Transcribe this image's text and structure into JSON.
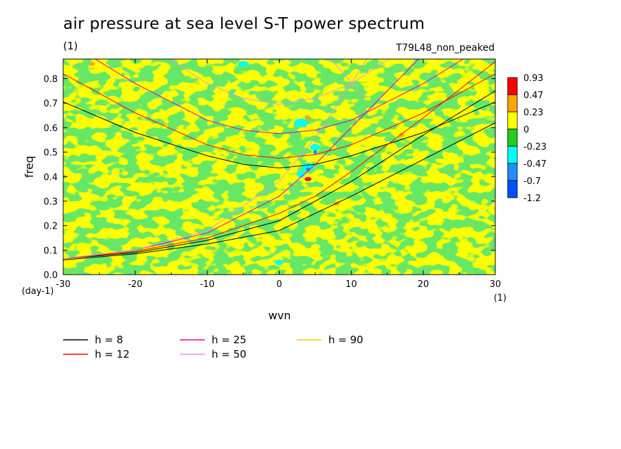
{
  "chart_data": {
    "type": "heatmap",
    "title": "air pressure at sea level S-T power spectrum",
    "units_label": "(1)",
    "run_label": "T79L48_non_peaked",
    "xlabel": "wvn",
    "ylabel": "freq",
    "x_unit": "(1)",
    "y_unit": "(day-1)",
    "xlim": [
      -30,
      30
    ],
    "ylim": [
      0,
      0.88
    ],
    "x_ticks": [
      "-30",
      "-20",
      "-10",
      "0",
      "10",
      "20",
      "30"
    ],
    "y_ticks": [
      "0.0",
      "0.1",
      "0.2",
      "0.3",
      "0.4",
      "0.5",
      "0.6",
      "0.7",
      "0.8"
    ],
    "colorbar": {
      "levels": [
        "0.93",
        "0.47",
        "0.23",
        "0",
        "-0.23",
        "-0.47",
        "-0.7",
        "-1.2"
      ],
      "colors": [
        "#ff0000",
        "#ffa500",
        "#ffff00",
        "#22cc22",
        "#00ffff",
        "#1e90ff",
        "#0050ff"
      ]
    },
    "field_colors": {
      "background": "#ffff00",
      "green": "#22cc22",
      "cyan": "#00ffff",
      "blue": "#1e90ff",
      "orange": "#ffa500",
      "red": "#ff0000"
    },
    "series": [
      {
        "name": "h =  8",
        "color": "#000000"
      },
      {
        "name": "h = 12",
        "color": "#ff0000"
      },
      {
        "name": "h = 25",
        "color": "#dd00aa"
      },
      {
        "name": "h = 50",
        "color": "#dd99dd"
      },
      {
        "name": "h = 90",
        "color": "#ffcc00"
      }
    ],
    "curves": [
      {
        "series": 0,
        "kind": "symmetric",
        "points": [
          [
            -30,
            0.705
          ],
          [
            -20,
            0.58
          ],
          [
            -10,
            0.485
          ],
          [
            -5,
            0.45
          ],
          [
            0,
            0.435
          ],
          [
            5,
            0.45
          ],
          [
            10,
            0.485
          ],
          [
            20,
            0.58
          ],
          [
            30,
            0.705
          ]
        ]
      },
      {
        "series": 1,
        "kind": "symmetric",
        "points": [
          [
            -30,
            0.82
          ],
          [
            -20,
            0.66
          ],
          [
            -10,
            0.53
          ],
          [
            -5,
            0.49
          ],
          [
            0,
            0.475
          ],
          [
            5,
            0.49
          ],
          [
            10,
            0.53
          ],
          [
            20,
            0.66
          ],
          [
            30,
            0.82
          ]
        ]
      },
      {
        "series": 2,
        "kind": "symmetric",
        "points": [
          [
            -30,
            0.96
          ],
          [
            -20,
            0.78
          ],
          [
            -10,
            0.63
          ],
          [
            -5,
            0.59
          ],
          [
            0,
            0.575
          ],
          [
            5,
            0.59
          ],
          [
            10,
            0.63
          ],
          [
            20,
            0.78
          ],
          [
            30,
            0.96
          ]
        ]
      },
      {
        "series": 3,
        "kind": "symmetric",
        "points": [
          [
            -20,
            0.97
          ],
          [
            -10,
            0.78
          ],
          [
            -5,
            0.72
          ],
          [
            0,
            0.695
          ],
          [
            5,
            0.72
          ],
          [
            10,
            0.78
          ],
          [
            20,
            0.97
          ]
        ]
      },
      {
        "series": 0,
        "kind": "kelvin",
        "points": [
          [
            -30,
            0.06
          ],
          [
            -20,
            0.085
          ],
          [
            -10,
            0.125
          ],
          [
            0,
            0.18
          ],
          [
            10,
            0.32
          ],
          [
            20,
            0.47
          ],
          [
            30,
            0.62
          ]
        ]
      },
      {
        "series": 0,
        "kind": "kelvin",
        "points": [
          [
            -30,
            0.065
          ],
          [
            -20,
            0.09
          ],
          [
            -10,
            0.14
          ],
          [
            0,
            0.22
          ],
          [
            10,
            0.38
          ],
          [
            20,
            0.57
          ],
          [
            30,
            0.75
          ]
        ]
      },
      {
        "series": 1,
        "kind": "kelvin",
        "points": [
          [
            -30,
            0.065
          ],
          [
            -20,
            0.095
          ],
          [
            -10,
            0.15
          ],
          [
            0,
            0.25
          ],
          [
            5,
            0.32
          ],
          [
            10,
            0.42
          ],
          [
            20,
            0.64
          ],
          [
            30,
            0.87
          ]
        ]
      },
      {
        "series": 2,
        "kind": "kelvin",
        "points": [
          [
            -30,
            0.065
          ],
          [
            -20,
            0.1
          ],
          [
            -10,
            0.17
          ],
          [
            0,
            0.32
          ],
          [
            5,
            0.45
          ],
          [
            10,
            0.6
          ],
          [
            15,
            0.75
          ],
          [
            20,
            0.9
          ]
        ]
      },
      {
        "series": 3,
        "kind": "kelvin",
        "points": [
          [
            -30,
            0.065
          ],
          [
            -20,
            0.1
          ],
          [
            -10,
            0.18
          ],
          [
            0,
            0.38
          ],
          [
            5,
            0.56
          ],
          [
            10,
            0.78
          ],
          [
            13,
            0.92
          ]
        ]
      },
      {
        "series": 3,
        "kind": "ig",
        "points": [
          [
            5,
            0.95
          ],
          [
            9,
            0.82
          ],
          [
            12,
            0.72
          ]
        ]
      }
    ]
  }
}
